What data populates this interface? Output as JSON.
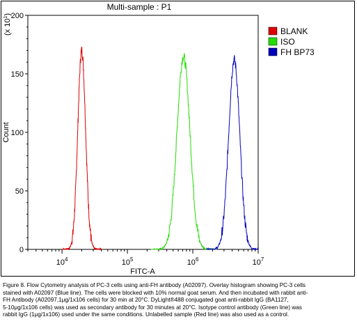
{
  "chart_data": {
    "type": "line",
    "title": "Multi-sample : P1",
    "xlabel": "FITC-A",
    "ylabel": "Count",
    "ylabel_multiplier": "(x 10",
    "ylabel_multiplier_exp": "1",
    "ylabel_multiplier_close": ")",
    "x_scale": "log",
    "xlim": [
      3000,
      10000000
    ],
    "ylim": [
      0,
      200
    ],
    "x_ticks": [
      {
        "value": 10000,
        "base": "10",
        "exp": "4"
      },
      {
        "value": 100000,
        "base": "10",
        "exp": "5"
      },
      {
        "value": 1000000,
        "base": "10",
        "exp": "6"
      },
      {
        "value": 10000000,
        "base": "10",
        "exp": "7"
      }
    ],
    "y_ticks": [
      0,
      50,
      100,
      150,
      200
    ],
    "y_tick_labels": [
      "0",
      "50",
      "100",
      "150",
      "200"
    ],
    "legend_position": "right",
    "series": [
      {
        "name": "BLANK",
        "color": "#dd0000",
        "peak_x": 20000,
        "peak_y": 170,
        "log_width": 0.06
      },
      {
        "name": "ISO",
        "color": "#22dd00",
        "peak_x": 720000,
        "peak_y": 165,
        "log_width": 0.1
      },
      {
        "name": "FH BP73",
        "color": "#0000bb",
        "peak_x": 4300000,
        "peak_y": 162,
        "log_width": 0.085
      }
    ]
  },
  "caption": {
    "lines": [
      "Figure 8. Flow Cytometry analysis of PC-3 cells using anti-FH antibody (A02097).  Overlay histogram showing PC-3 cells",
      "stained with A02097 (Blue line). The cells were blocked with 10% normal goat serum. And then incubated with rabbit anti-",
      "FH Antibody (A02097,1μg/1x106 cells) for 30 min at 20°C. DyLight®488 conjugated goat anti-rabbit IgG (BA1127,",
      "5-10μg/1x106 cells) was used as secondary antibody for 30 minutes at 20°C. Isotype control antibody (Green line) was",
      "rabbit IgG (1μg/1x106) used under the same conditions. Unlabelled sample (Red line) was also used as a control."
    ]
  }
}
